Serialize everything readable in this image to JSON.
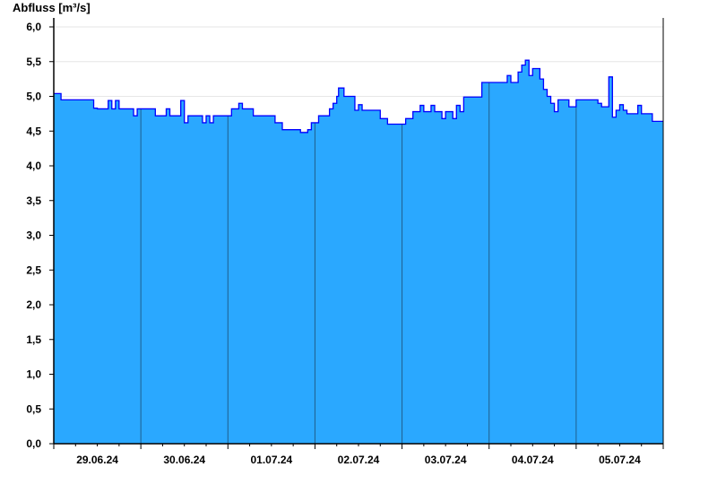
{
  "chart_data": {
    "type": "area",
    "title": "",
    "ylabel": "Abfluss [m³/s]",
    "xlabel": "",
    "ylim": [
      0,
      6
    ],
    "xlim": [
      "29.06.24 00:00",
      "06.07.24 00:00"
    ],
    "yticks": [
      "0,0",
      "0,5",
      "1,0",
      "1,5",
      "2,0",
      "2,5",
      "3,0",
      "3,5",
      "4,0",
      "4,5",
      "5,0",
      "5,5",
      "6,0"
    ],
    "xticks": [
      "29.06.24",
      "30.06.24",
      "01.07.24",
      "02.07.24",
      "03.07.24",
      "04.07.24",
      "05.07.24"
    ],
    "grid": true,
    "colors": {
      "fill": "#2aa8ff",
      "line": "#0000ff",
      "day_separator": "#1f5f8c",
      "grid": "#e6e6e6"
    },
    "series": [
      {
        "points": [
          [
            "29.06.24 00:00",
            5.04
          ],
          [
            "29.06.24 02:00",
            4.95
          ],
          [
            "29.06.24 11:00",
            4.83
          ],
          [
            "29.06.24 12:00",
            4.82
          ],
          [
            "29.06.24 15:00",
            4.94
          ],
          [
            "29.06.24 16:00",
            4.82
          ],
          [
            "29.06.24 17:00",
            4.94
          ],
          [
            "29.06.24 18:00",
            4.82
          ],
          [
            "29.06.24 22:00",
            4.72
          ],
          [
            "29.06.24 23:00",
            4.82
          ],
          [
            "30.06.24 04:00",
            4.72
          ],
          [
            "30.06.24 07:00",
            4.82
          ],
          [
            "30.06.24 08:00",
            4.72
          ],
          [
            "30.06.24 11:00",
            4.94
          ],
          [
            "30.06.24 12:00",
            4.62
          ],
          [
            "30.06.24 13:00",
            4.72
          ],
          [
            "30.06.24 17:00",
            4.62
          ],
          [
            "30.06.24 18:00",
            4.72
          ],
          [
            "30.06.24 19:00",
            4.62
          ],
          [
            "30.06.24 20:00",
            4.72
          ],
          [
            "01.07.24 01:00",
            4.82
          ],
          [
            "01.07.24 03:00",
            4.9
          ],
          [
            "01.07.24 04:00",
            4.82
          ],
          [
            "01.07.24 07:00",
            4.72
          ],
          [
            "01.07.24 13:00",
            4.62
          ],
          [
            "01.07.24 15:00",
            4.52
          ],
          [
            "01.07.24 20:00",
            4.48
          ],
          [
            "01.07.24 22:00",
            4.52
          ],
          [
            "01.07.24 23:00",
            4.62
          ],
          [
            "02.07.24 01:00",
            4.72
          ],
          [
            "02.07.24 04:00",
            4.82
          ],
          [
            "02.07.24 05:00",
            4.9
          ],
          [
            "02.07.24 06:00",
            5.0
          ],
          [
            "02.07.24 06:30",
            5.12
          ],
          [
            "02.07.24 08:00",
            5.0
          ],
          [
            "02.07.24 11:00",
            4.8
          ],
          [
            "02.07.24 12:00",
            4.88
          ],
          [
            "02.07.24 13:00",
            4.8
          ],
          [
            "02.07.24 18:00",
            4.68
          ],
          [
            "02.07.24 20:00",
            4.6
          ],
          [
            "03.07.24 01:00",
            4.68
          ],
          [
            "03.07.24 03:00",
            4.78
          ],
          [
            "03.07.24 05:00",
            4.87
          ],
          [
            "03.07.24 06:00",
            4.78
          ],
          [
            "03.07.24 08:00",
            4.87
          ],
          [
            "03.07.24 09:00",
            4.78
          ],
          [
            "03.07.24 11:00",
            4.68
          ],
          [
            "03.07.24 12:00",
            4.78
          ],
          [
            "03.07.24 14:00",
            4.68
          ],
          [
            "03.07.24 15:00",
            4.87
          ],
          [
            "03.07.24 16:00",
            4.78
          ],
          [
            "03.07.24 17:00",
            4.99
          ],
          [
            "03.07.24 22:00",
            5.2
          ],
          [
            "04.07.24 05:00",
            5.3
          ],
          [
            "04.07.24 06:00",
            5.2
          ],
          [
            "04.07.24 08:00",
            5.35
          ],
          [
            "04.07.24 09:00",
            5.45
          ],
          [
            "04.07.24 10:00",
            5.52
          ],
          [
            "04.07.24 11:00",
            5.3
          ],
          [
            "04.07.24 12:00",
            5.4
          ],
          [
            "04.07.24 14:00",
            5.25
          ],
          [
            "04.07.24 15:00",
            5.1
          ],
          [
            "04.07.24 16:00",
            5.0
          ],
          [
            "04.07.24 17:00",
            4.9
          ],
          [
            "04.07.24 18:00",
            4.78
          ],
          [
            "04.07.24 19:00",
            4.95
          ],
          [
            "04.07.24 22:00",
            4.85
          ],
          [
            "05.07.24 00:00",
            4.95
          ],
          [
            "05.07.24 06:00",
            4.9
          ],
          [
            "05.07.24 07:00",
            4.85
          ],
          [
            "05.07.24 09:00",
            5.28
          ],
          [
            "05.07.24 10:00",
            4.7
          ],
          [
            "05.07.24 11:00",
            4.8
          ],
          [
            "05.07.24 12:00",
            4.88
          ],
          [
            "05.07.24 13:00",
            4.8
          ],
          [
            "05.07.24 14:00",
            4.75
          ],
          [
            "05.07.24 17:00",
            4.87
          ],
          [
            "05.07.24 18:00",
            4.75
          ],
          [
            "05.07.24 21:00",
            4.64
          ],
          [
            "06.07.24 00:00",
            4.64
          ]
        ]
      }
    ]
  }
}
